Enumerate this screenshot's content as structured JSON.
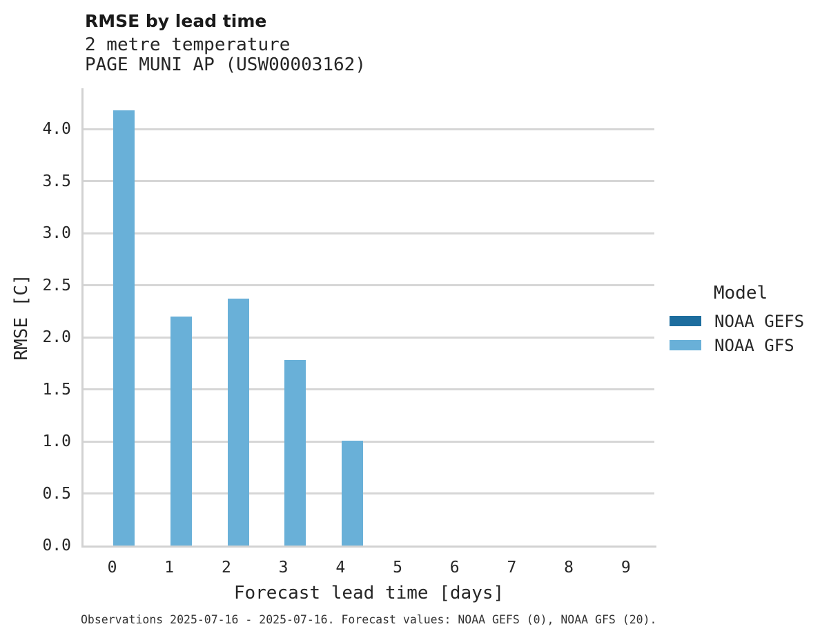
{
  "header": {
    "title": "RMSE by lead time",
    "subtitle_line1": "2 metre temperature",
    "subtitle_line2": "PAGE MUNI AP (USW00003162)"
  },
  "chart_data": {
    "type": "bar",
    "title": "RMSE by lead time",
    "subtitle": "2 metre temperature — PAGE MUNI AP (USW00003162)",
    "categories": [
      "0",
      "1",
      "2",
      "3",
      "4",
      "5",
      "6",
      "7",
      "8",
      "9"
    ],
    "series": [
      {
        "name": "NOAA GEFS",
        "color": "#1d6d9e",
        "values": [
          null,
          null,
          null,
          null,
          null,
          null,
          null,
          null,
          null,
          null
        ]
      },
      {
        "name": "NOAA GFS",
        "color": "#69b0d8",
        "values": [
          4.18,
          2.2,
          2.37,
          1.78,
          1.01,
          null,
          null,
          null,
          null,
          null
        ]
      }
    ],
    "xlabel": "Forecast lead time [days]",
    "ylabel": "RMSE [C]",
    "ylim": [
      0,
      4.39
    ],
    "yticks": [
      "0.0",
      "0.5",
      "1.0",
      "1.5",
      "2.0",
      "2.5",
      "3.0",
      "3.5",
      "4.0"
    ],
    "grid": true,
    "legend": {
      "title": "Model",
      "position": "right"
    }
  },
  "footer": {
    "caption": "Observations 2025-07-16 - 2025-07-16. Forecast values: NOAA GEFS (0), NOAA GFS (20)."
  },
  "colors": {
    "grid": "#d2d2d2",
    "text": "#262626",
    "noaa_gefs": "#1d6d9e",
    "noaa_gfs": "#69b0d8"
  }
}
